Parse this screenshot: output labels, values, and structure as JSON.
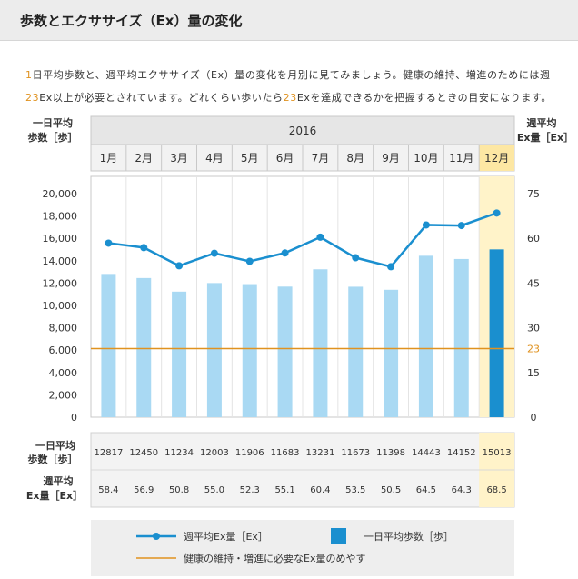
{
  "header": {
    "title": "歩数とエクササイズ（Ex）量の変化"
  },
  "intro": {
    "seg1": "1",
    "seg2": "日平均歩数と、週平均エクササイズ（Ex）量の変化を月別に見てみましょう。健康の維持、増進のためには週",
    "seg3": "23",
    "seg4": "Ex以上が必要とされています。どれくらい歩いたら",
    "seg5": "23",
    "seg6": "Exを達成できるかを把握するときの目安になります。"
  },
  "chart_data": {
    "type": "bar",
    "year": "2016",
    "categories": [
      "1月",
      "2月",
      "3月",
      "4月",
      "5月",
      "6月",
      "7月",
      "8月",
      "9月",
      "10月",
      "11月",
      "12月"
    ],
    "highlight_index": 11,
    "series": [
      {
        "name": "一日平均歩数［歩］",
        "type": "bar",
        "axis": "left",
        "values": [
          12817,
          12450,
          11234,
          12003,
          11906,
          11683,
          13231,
          11673,
          11398,
          14443,
          14152,
          15013
        ]
      },
      {
        "name": "週平均Ex量［Ex］",
        "type": "line",
        "axis": "right",
        "values": [
          58.4,
          56.9,
          50.8,
          55.0,
          52.3,
          55.1,
          60.4,
          53.5,
          50.5,
          64.5,
          64.3,
          68.5
        ]
      }
    ],
    "reference": {
      "value": 23,
      "label": "23",
      "legend": "健康の維持・増進に必要なEx量のめやす"
    },
    "left_axis": {
      "label_line1": "一日平均",
      "label_line2": "歩数［歩］",
      "ylim": [
        0,
        20000
      ],
      "ticks": [
        "0",
        "2,000",
        "4,000",
        "6,000",
        "8,000",
        "10,000",
        "12,000",
        "14,000",
        "16,000",
        "18,000",
        "20,000"
      ]
    },
    "right_axis": {
      "label_line1": "週平均",
      "label_line2": "Ex量［Ex］",
      "ylim": [
        0,
        75
      ],
      "ticks": [
        "0",
        "15",
        "30",
        "45",
        "60",
        "75"
      ]
    },
    "table": {
      "row1_label_line1": "一日平均",
      "row1_label_line2": "歩数［歩］",
      "row2_label_line1": "週平均",
      "row2_label_line2": "Ex量［Ex］",
      "row1": [
        "12817",
        "12450",
        "11234",
        "12003",
        "11906",
        "11683",
        "13231",
        "11673",
        "11398",
        "14443",
        "14152",
        "15013"
      ],
      "row2": [
        "58.4",
        "56.9",
        "50.8",
        "55.0",
        "52.3",
        "55.1",
        "60.4",
        "53.5",
        "50.5",
        "64.5",
        "64.3",
        "68.5"
      ]
    },
    "legend": {
      "line": "週平均Ex量［Ex］",
      "bar": "一日平均歩数［歩］"
    },
    "colors": {
      "bar": "#a9d9f3",
      "bar_highlight": "#1a8fcf",
      "line": "#1a8fcf",
      "reference": "#e0921f",
      "highlight_bg": "#fff3c9",
      "highlight_header": "#fde7a3"
    }
  }
}
